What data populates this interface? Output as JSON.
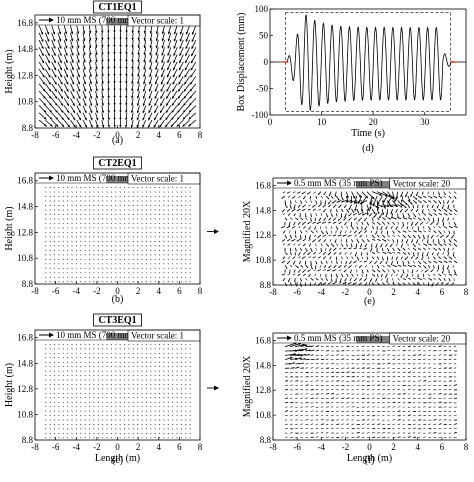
{
  "chart_data": [
    {
      "id": "a",
      "type": "quiver",
      "caption": "(a)",
      "title": "CT1EQ1",
      "xlabel": "",
      "ylabel": "Height (m)",
      "xlim": [
        -8,
        8
      ],
      "ylim": [
        8.8,
        17.4
      ],
      "xticks": [
        "-8",
        "-6",
        "-4",
        "-2",
        "0",
        "2",
        "4",
        "6",
        "8"
      ],
      "yticks": [
        "8.8",
        "10.8",
        "12.8",
        "14.8",
        "16.8"
      ],
      "ref_label": "10 mm MS (700 mm PS)",
      "scale_label": "Vector scale: 1",
      "box_x": [
        -1.1,
        2.3
      ]
    },
    {
      "id": "b",
      "type": "quiver",
      "caption": "(b)",
      "title": "CT2EQ1",
      "xlabel": "",
      "ylabel": "Height (m)",
      "xlim": [
        -8,
        8
      ],
      "ylim": [
        8.8,
        17.4
      ],
      "xticks": [
        "-8",
        "-6",
        "-4",
        "-2",
        "0",
        "2",
        "4",
        "6",
        "8"
      ],
      "yticks": [
        "8.8",
        "10.8",
        "12.8",
        "14.8",
        "16.8"
      ],
      "ref_label": "10 mm MS (700 mm PS)",
      "scale_label": "Vector scale: 1",
      "box_x": [
        -1.1,
        2.3
      ]
    },
    {
      "id": "c",
      "type": "quiver",
      "caption": "(c)",
      "title": "CT3EQ1",
      "xlabel": "Length (m)",
      "ylabel": "Height (m)",
      "xlim": [
        -8,
        8
      ],
      "ylim": [
        8.8,
        17.4
      ],
      "xticks": [
        "-8",
        "-6",
        "-4",
        "-2",
        "0",
        "2",
        "4",
        "6",
        "8"
      ],
      "yticks": [
        "8.8",
        "10.8",
        "12.8",
        "14.8",
        "16.8"
      ],
      "ref_label": "10 mm MS (700 mm PS)",
      "scale_label": "Vector scale: 1",
      "box_x": [
        -1.1,
        2.3
      ]
    },
    {
      "id": "d",
      "type": "line",
      "caption": "(d)",
      "xlabel": "Time (s)",
      "ylabel": "Box Displacement (mm)",
      "xlim": [
        0,
        38
      ],
      "ylim": [
        -100,
        100
      ],
      "xticks": [
        "0",
        "10",
        "20",
        "30"
      ],
      "yticks": [
        "-100",
        "-50",
        "0",
        "50",
        "100"
      ],
      "series": [
        {
          "cycles": 18,
          "t_start": 3.2,
          "t_end": 33.5,
          "amp_early_max": 90,
          "amp_steady": 65
        }
      ]
    },
    {
      "id": "e",
      "type": "quiver",
      "caption": "(e)",
      "xlabel": "",
      "ylabel": "Magnified 20X",
      "xlim": [
        -8,
        8
      ],
      "ylim": [
        8.8,
        17.4
      ],
      "xticks": [
        "-8",
        "-6",
        "-4",
        "-2",
        "0",
        "2",
        "4",
        "6",
        "8"
      ],
      "yticks": [
        "8.8",
        "10.8",
        "12.8",
        "14.8",
        "16.8"
      ],
      "ref_label": "0.5 mm MS (35 mm PS)",
      "scale_label": "Vector scale: 20",
      "box_x": [
        -1.1,
        2.3
      ]
    },
    {
      "id": "f",
      "type": "quiver",
      "caption": "(f)",
      "xlabel": "Length (m)",
      "ylabel": "Magnified 20X",
      "xlim": [
        -8,
        8
      ],
      "ylim": [
        8.8,
        17.4
      ],
      "xticks": [
        "-8",
        "-6",
        "-4",
        "-2",
        "0",
        "2",
        "4",
        "6",
        "8"
      ],
      "yticks": [
        "8.8",
        "10.8",
        "12.8",
        "14.8",
        "16.8"
      ],
      "ref_label": "0.5 mm MS (35 mm PS)",
      "scale_label": "Vector scale: 20",
      "box_x": [
        -1.1,
        2.3
      ]
    }
  ],
  "colors": {
    "box": "#808080",
    "axis": "#000000",
    "arrow": "#000000",
    "marker": "#e03020"
  }
}
